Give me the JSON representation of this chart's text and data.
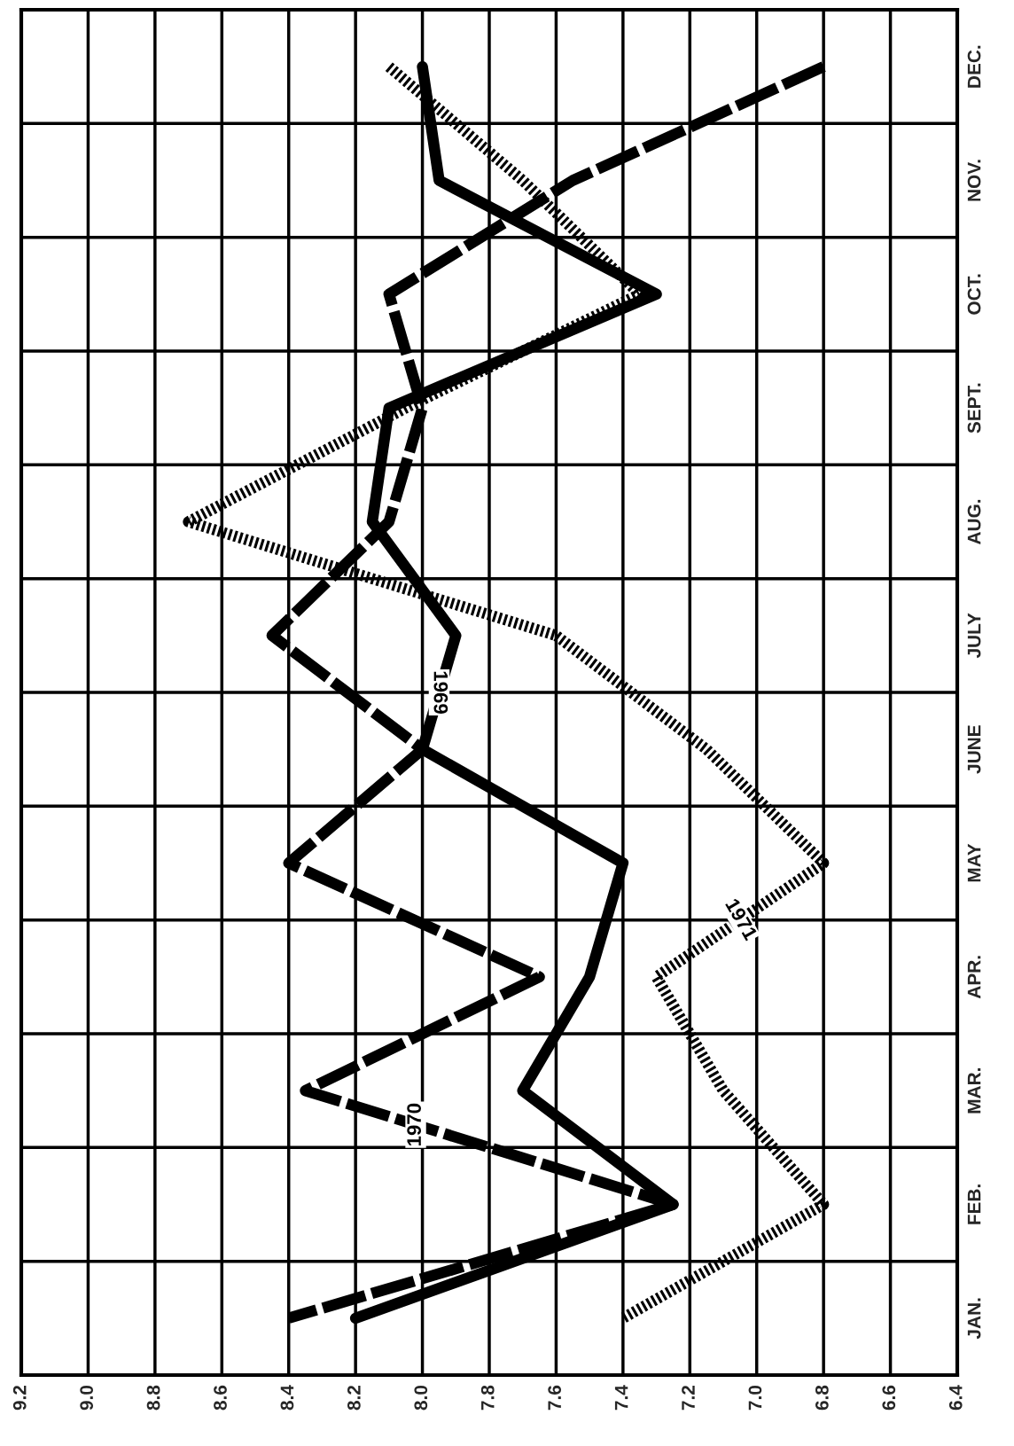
{
  "chart_data": {
    "type": "line",
    "orientation": "horizontal",
    "categories": [
      "DEC.",
      "NOV.",
      "OCT.",
      "SEPT.",
      "AUG.",
      "JULY",
      "JUNE",
      "MAY",
      "APR.",
      "MAR.",
      "FEB.",
      "JAN."
    ],
    "series": [
      {
        "name": "1969",
        "color": "#000000",
        "line_style": "solid",
        "values": [
          8.0,
          7.95,
          7.3,
          8.1,
          8.15,
          7.9,
          8.0,
          7.4,
          7.5,
          7.7,
          7.25,
          8.2
        ]
      },
      {
        "name": "1970",
        "color": "#000000",
        "line_style": "dashed",
        "values": [
          6.8,
          7.55,
          8.1,
          8.0,
          8.1,
          8.45,
          8.0,
          8.4,
          7.65,
          8.35,
          7.25,
          8.4
        ]
      },
      {
        "name": "1971",
        "color": "#000000",
        "line_style": "dotted",
        "values": [
          8.1,
          7.7,
          7.35,
          8.05,
          8.7,
          7.6,
          7.15,
          6.8,
          7.3,
          7.1,
          6.8,
          7.4
        ]
      }
    ],
    "xlim": [
      9.2,
      6.4
    ],
    "xticks": [
      9.2,
      {
        "value": 9,
        "label": "9.0"
      },
      8.8,
      8.6,
      8.4,
      8.2,
      {
        "value": 8,
        "label": "8.0"
      },
      7.8,
      7.6,
      7.4,
      7.2,
      {
        "value": 7,
        "label": "7.0"
      },
      6.8,
      6.6,
      6.4
    ],
    "grid": true
  }
}
